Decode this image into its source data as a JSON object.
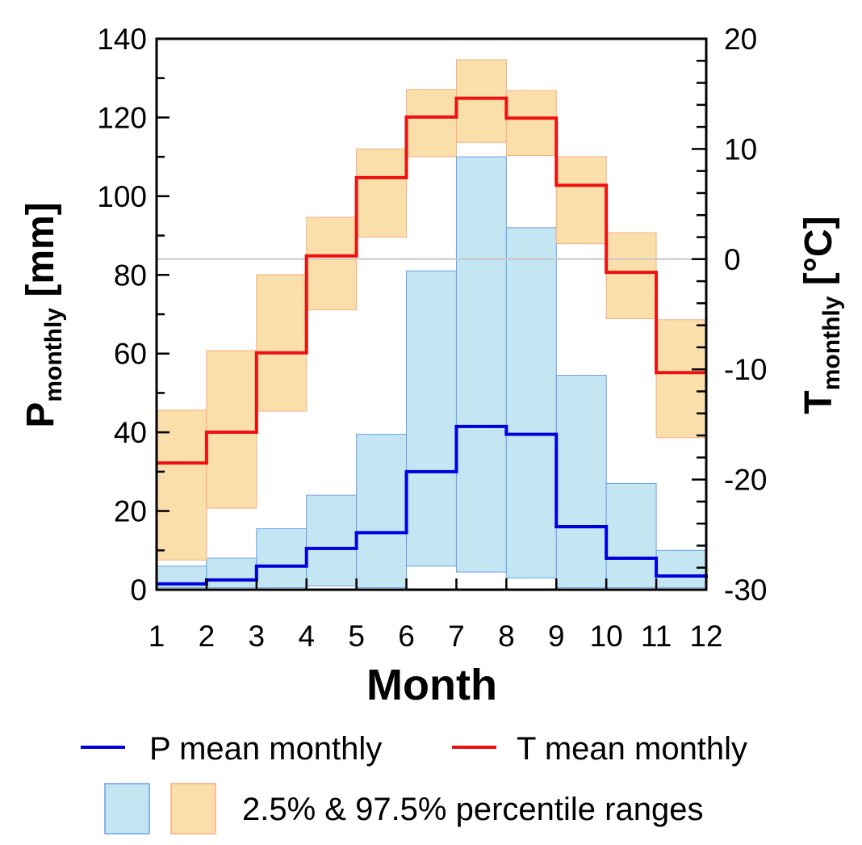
{
  "chart_data": {
    "type": "line",
    "x": [
      1,
      2,
      3,
      4,
      5,
      6,
      7,
      8,
      9,
      10,
      11,
      12
    ],
    "xlabel": "Month",
    "xlim": [
      1,
      12
    ],
    "y_left": {
      "label_main": "P",
      "label_sub": "monthly",
      "label_unit": " [mm]",
      "lim": [
        0,
        140
      ],
      "ticks": [
        0,
        20,
        40,
        60,
        80,
        100,
        120,
        140
      ]
    },
    "y_right": {
      "label_main": "T",
      "label_sub": "monthly",
      "label_unit": " [°C]",
      "lim": [
        -30,
        20
      ],
      "ticks": [
        -30,
        -20,
        -10,
        0,
        10,
        20
      ]
    },
    "series": [
      {
        "name": "P mean monthly",
        "axis": "left",
        "color": "#0000dd",
        "style": "step",
        "values": [
          1.5,
          2.5,
          6,
          10.5,
          14.5,
          30,
          41.5,
          39.5,
          16,
          8,
          3.5,
          3
        ]
      },
      {
        "name": "T mean monthly",
        "axis": "right",
        "color": "#ee1111",
        "style": "step",
        "values": [
          -18.5,
          -15.7,
          -8.5,
          0.3,
          7.4,
          12.9,
          14.6,
          12.8,
          6.7,
          -1.2,
          -10.3,
          -10.3
        ]
      }
    ],
    "bands": [
      {
        "axis": "left",
        "fill": "#c3e6f2",
        "stroke": "#6a9ee8",
        "lower": [
          0.5,
          0.5,
          0.5,
          1,
          0.5,
          6,
          4.5,
          3,
          0.5,
          0.5,
          0.5,
          0.5
        ],
        "upper": [
          6,
          8,
          15.5,
          24,
          39.5,
          81,
          110,
          92,
          54.5,
          27,
          10,
          9.5
        ]
      },
      {
        "axis": "right",
        "fill": "#fbdfaa",
        "stroke": "#f5ad82",
        "lower": [
          -27.3,
          -22.6,
          -13.8,
          -4.6,
          2.0,
          9.3,
          10.6,
          9.4,
          1.4,
          -5.4,
          -16.2,
          -16.2
        ],
        "upper": [
          -13.7,
          -8.3,
          -1.4,
          3.8,
          10.0,
          15.4,
          18.1,
          15.3,
          9.3,
          2.4,
          -5.5,
          -5.5
        ]
      }
    ],
    "reference_line": {
      "axis": "right",
      "value": 0,
      "color": "#c8c8c8"
    },
    "legend": {
      "placement": "bottom",
      "line_items": [
        {
          "label": "P mean monthly",
          "color": "#0000dd"
        },
        {
          "label": "T mean monthly",
          "color": "#ee1111"
        }
      ],
      "band_label": "2.5% & 97.5% percentile ranges",
      "band_swatches": [
        {
          "fill": "#c3e6f2",
          "stroke": "#6a9ee8"
        },
        {
          "fill": "#fbdfaa",
          "stroke": "#f5ad82"
        }
      ]
    }
  }
}
